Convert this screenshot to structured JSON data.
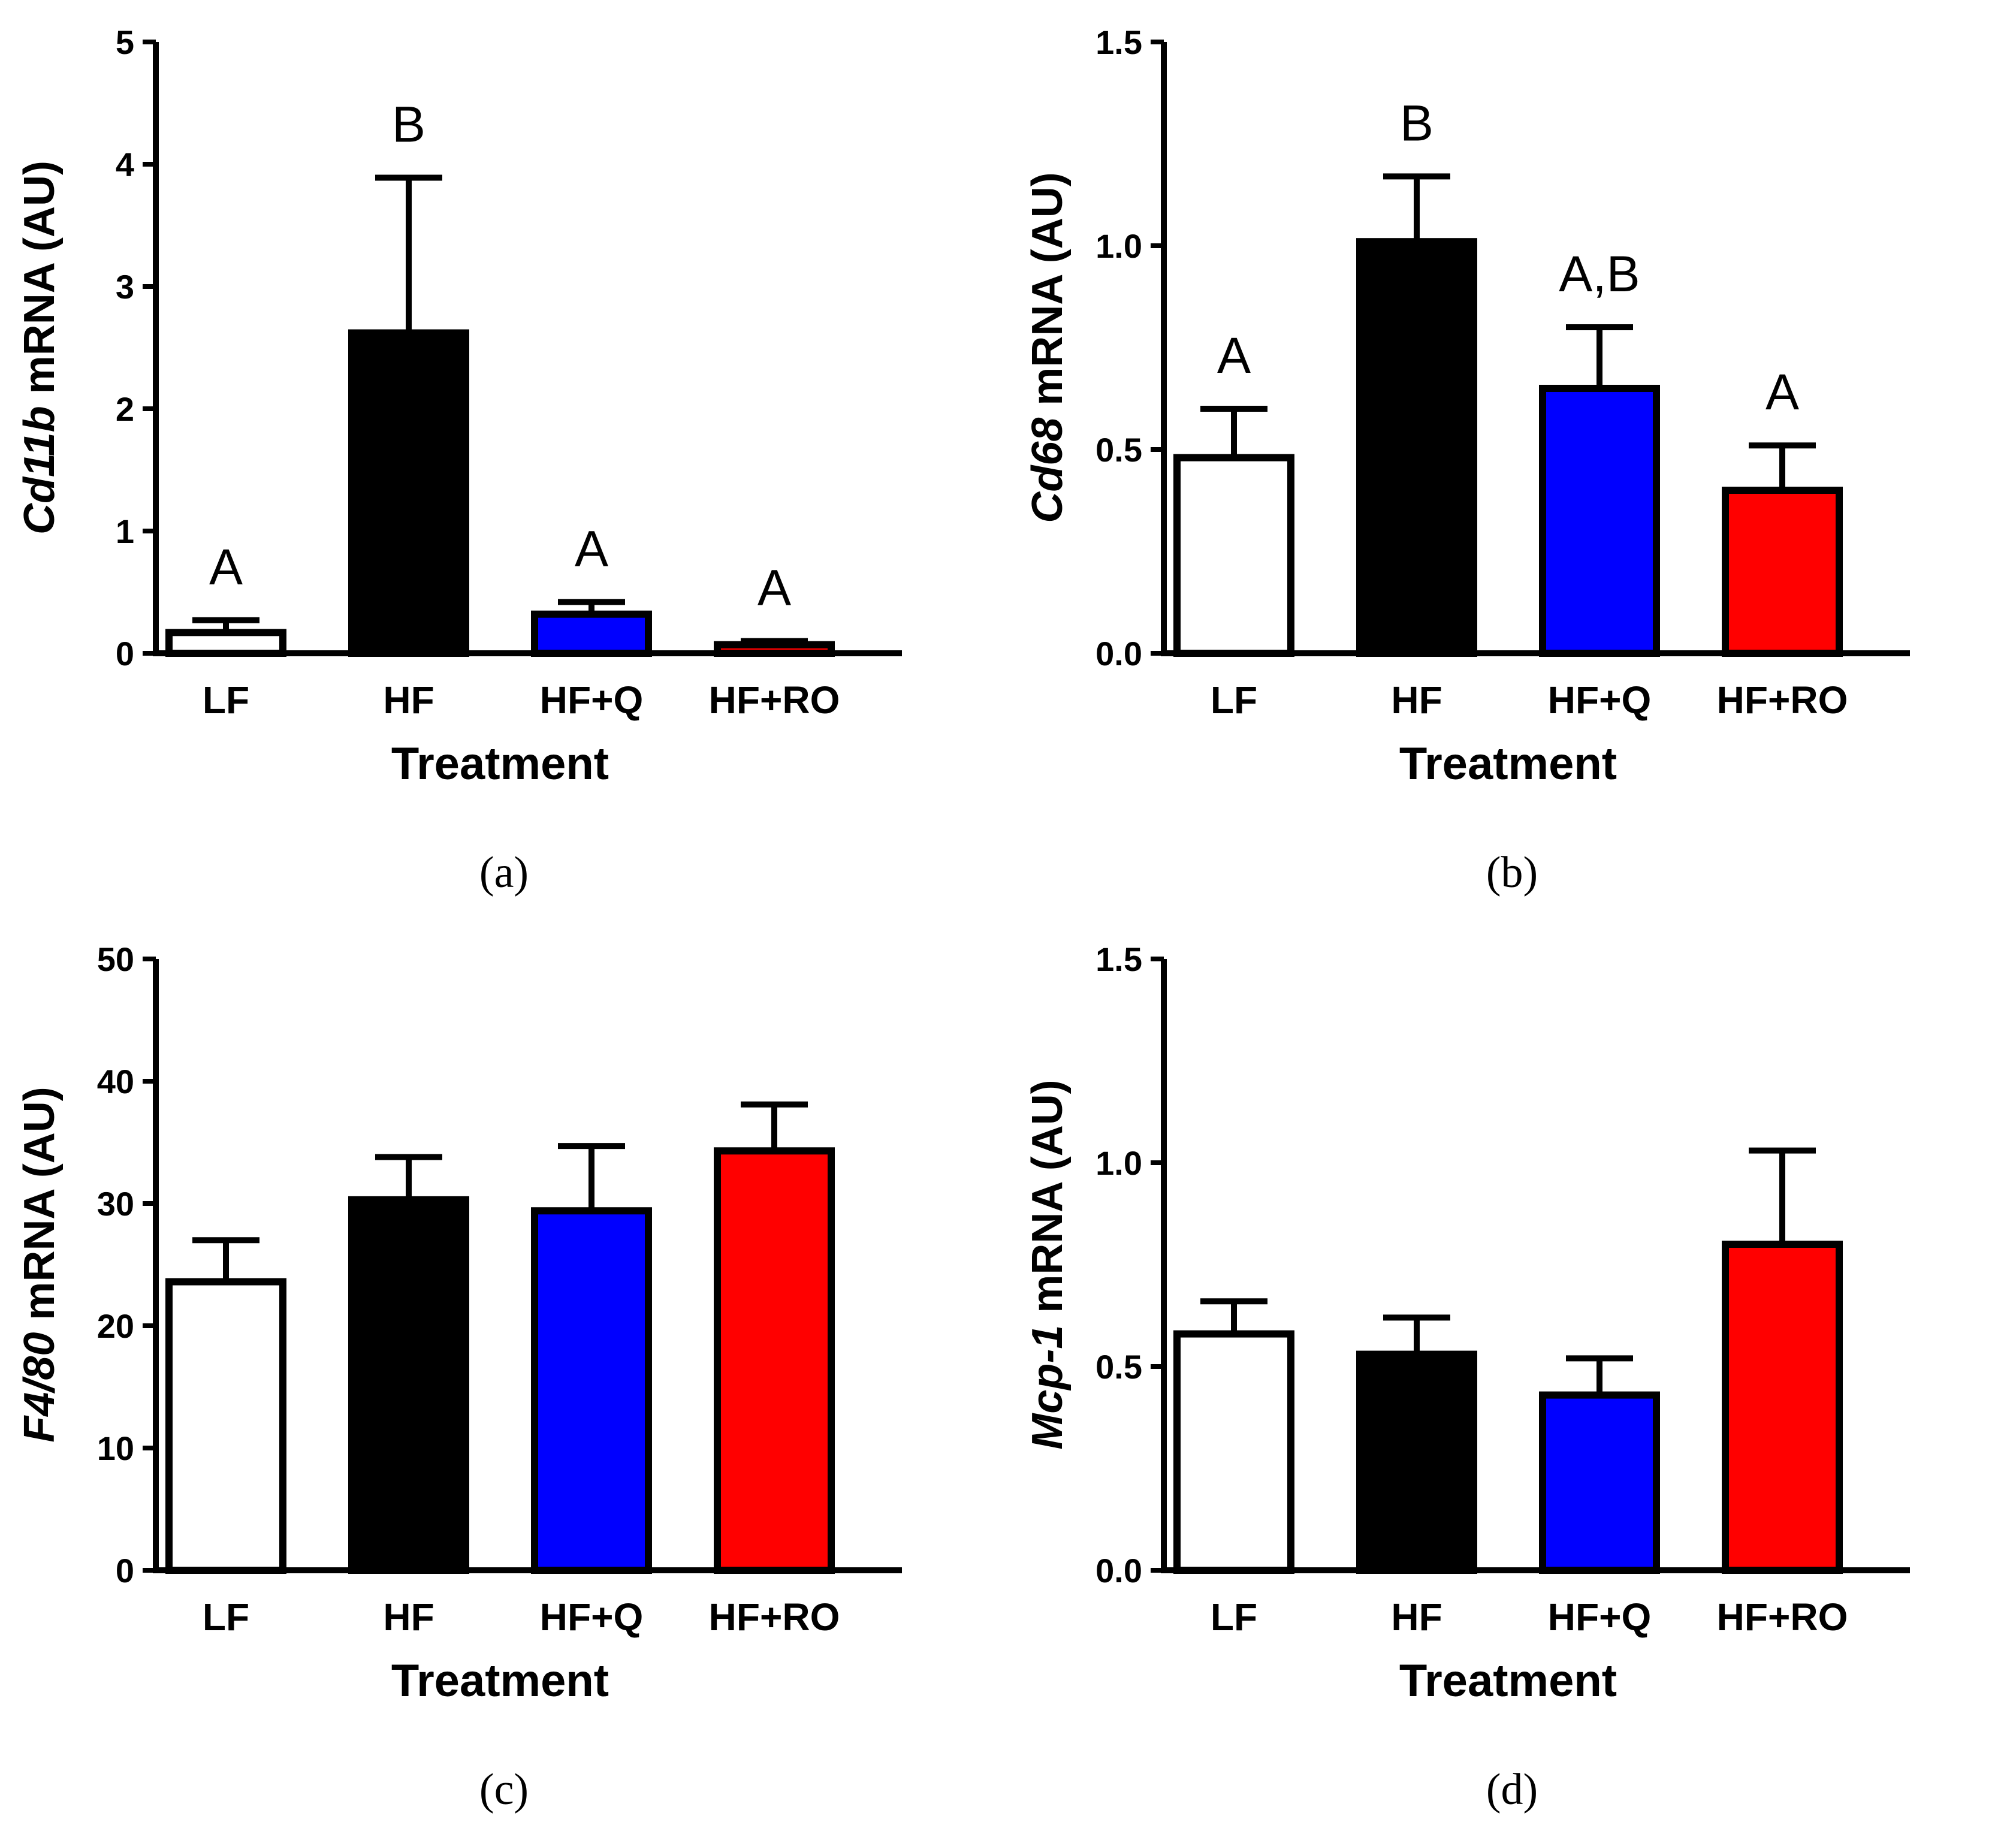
{
  "chart_data": [
    {
      "type": "bar",
      "panel_label": "(a)",
      "gene": "Cd11b",
      "ylabel_suffix": " mRNA (AU)",
      "xlabel": "Treatment",
      "categories": [
        "LF",
        "HF",
        "HF+Q",
        "HF+RO"
      ],
      "values": [
        0.17,
        2.62,
        0.32,
        0.07
      ],
      "errors": [
        0.1,
        1.27,
        0.1,
        0.03
      ],
      "significance": [
        "A",
        "B",
        "A",
        "A"
      ],
      "ylim": [
        0,
        5
      ],
      "yticks": [
        "0",
        "1",
        "2",
        "3",
        "4",
        "5"
      ],
      "ytick_values": [
        0,
        1,
        2,
        3,
        4,
        5
      ]
    },
    {
      "type": "bar",
      "panel_label": "(b)",
      "gene": "Cd68",
      "ylabel_suffix": " mRNA (AU)",
      "xlabel": "Treatment",
      "categories": [
        "LF",
        "HF",
        "HF+Q",
        "HF+RO"
      ],
      "values": [
        0.48,
        1.01,
        0.65,
        0.4
      ],
      "errors": [
        0.12,
        0.16,
        0.15,
        0.11
      ],
      "significance": [
        "A",
        "B",
        "A,B",
        "A"
      ],
      "ylim": [
        0,
        1.5
      ],
      "yticks": [
        "0.0",
        "0.5",
        "1.0",
        "1.5"
      ],
      "ytick_values": [
        0,
        0.5,
        1.0,
        1.5
      ]
    },
    {
      "type": "bar",
      "panel_label": "(c)",
      "gene": "F4/80",
      "ylabel_suffix": " mRNA (AU)",
      "xlabel": "Treatment",
      "categories": [
        "LF",
        "HF",
        "HF+Q",
        "HF+RO"
      ],
      "values": [
        23.6,
        30.3,
        29.4,
        34.3
      ],
      "errors": [
        3.4,
        3.5,
        5.3,
        3.8
      ],
      "significance": [],
      "ylim": [
        0,
        50
      ],
      "yticks": [
        "0",
        "10",
        "20",
        "30",
        "40",
        "50"
      ],
      "ytick_values": [
        0,
        10,
        20,
        30,
        40,
        50
      ]
    },
    {
      "type": "bar",
      "panel_label": "(d)",
      "gene": "Mcp-1",
      "ylabel_suffix": " mRNA (AU)",
      "xlabel": "Treatment",
      "categories": [
        "LF",
        "HF",
        "HF+Q",
        "HF+RO"
      ],
      "values": [
        0.58,
        0.53,
        0.43,
        0.8
      ],
      "errors": [
        0.08,
        0.09,
        0.09,
        0.23
      ],
      "significance": [],
      "ylim": [
        0,
        1.5
      ],
      "yticks": [
        "0.0",
        "0.5",
        "1.0",
        "1.5"
      ],
      "ytick_values": [
        0,
        0.5,
        1.0,
        1.5
      ]
    }
  ],
  "colors": {
    "LF": "#ffffff",
    "HF": "#000000",
    "HF+Q": "#0000ff",
    "HF+RO": "#ff0000",
    "stroke": "#000000"
  }
}
